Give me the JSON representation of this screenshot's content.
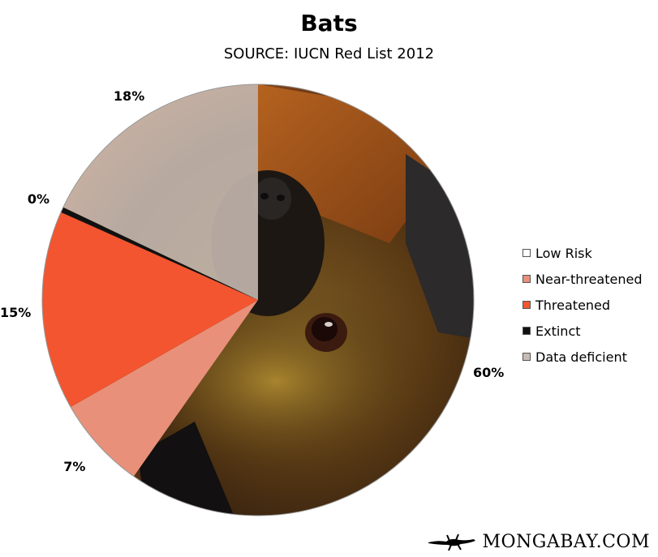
{
  "chart_data": {
    "type": "pie",
    "title": "Bats",
    "subtitle": "SOURCE: IUCN Red List 2012",
    "slices": [
      {
        "name": "Low Risk",
        "value": 60,
        "label": "60%",
        "color": "#ffffff"
      },
      {
        "name": "Near-threatened",
        "value": 7,
        "label": "7%",
        "color": "#e8907a"
      },
      {
        "name": "Threatened",
        "value": 15,
        "label": "15%",
        "color": "#f25530"
      },
      {
        "name": "Extinct",
        "value": 0.4,
        "label": "0%",
        "color": "#111111"
      },
      {
        "name": "Data deficient",
        "value": 18,
        "label": "18%",
        "color": "#c8bcb4"
      }
    ],
    "start_angle_deg": 0,
    "direction": "clockwise",
    "legend_position": "right",
    "background": "photograph of a fruit bat face"
  },
  "legend_items": [
    {
      "label": "Low Risk",
      "color": "#ffffff"
    },
    {
      "label": "Near-threatened",
      "color": "#e8907a"
    },
    {
      "label": "Threatened",
      "color": "#f25530"
    },
    {
      "label": "Extinct",
      "color": "#111111"
    },
    {
      "label": "Data deficient",
      "color": "#c8bcb4"
    }
  ],
  "brand": {
    "text": "MONGABAY.COM",
    "icon": "gecko-icon"
  }
}
